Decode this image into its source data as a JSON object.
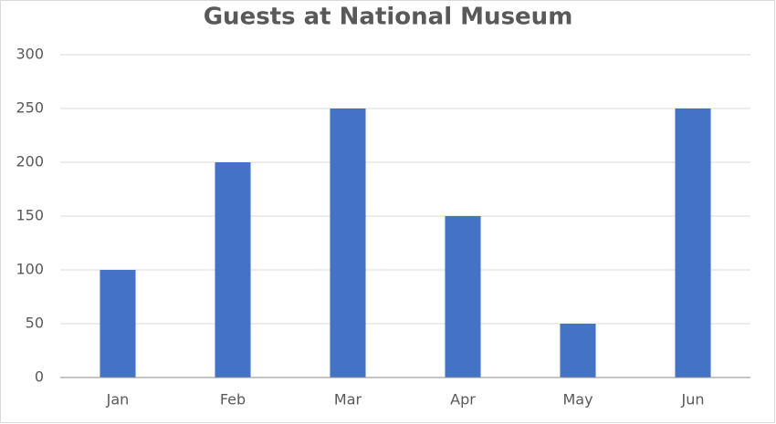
{
  "chart_data": {
    "type": "bar",
    "title": "Guests at National Museum",
    "categories": [
      "Jan",
      "Feb",
      "Mar",
      "Apr",
      "May",
      "Jun"
    ],
    "values": [
      100,
      200,
      250,
      150,
      50,
      250
    ],
    "color": "#4472c4",
    "ylim": [
      0,
      300
    ],
    "yticks": [
      0,
      50,
      100,
      150,
      200,
      250,
      300
    ],
    "grid": true
  }
}
